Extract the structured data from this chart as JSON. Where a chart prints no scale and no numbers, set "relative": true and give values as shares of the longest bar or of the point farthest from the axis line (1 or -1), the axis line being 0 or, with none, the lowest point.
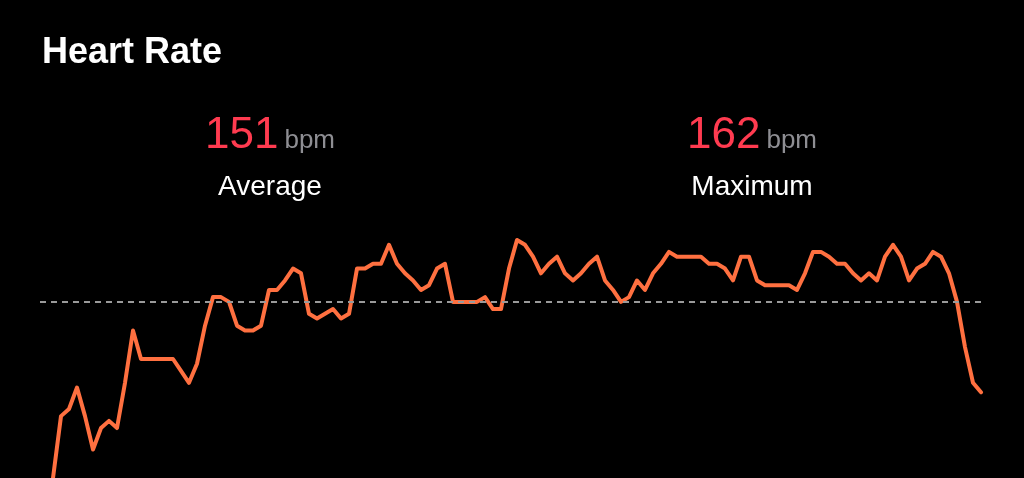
{
  "chart_data": {
    "type": "line",
    "title": "Heart Rate",
    "relative": true,
    "categories": [
      null,
      null,
      null,
      null,
      null,
      null,
      null,
      null,
      null,
      null,
      null,
      null,
      null,
      null,
      null,
      null,
      null,
      null,
      null,
      null,
      null,
      null,
      null,
      null,
      null,
      null,
      null,
      null,
      null,
      null,
      null,
      null,
      null,
      null,
      null,
      null,
      null,
      null,
      null,
      null,
      null,
      null,
      null,
      null,
      null,
      null,
      null,
      null,
      null,
      null,
      null,
      null,
      null,
      null,
      null,
      null,
      null,
      null,
      null,
      null,
      null,
      null,
      null,
      null,
      null,
      null,
      null,
      null,
      null,
      null,
      null,
      null,
      null,
      null,
      null,
      null,
      null,
      null,
      null,
      null,
      null,
      null,
      null,
      null,
      null,
      null,
      null,
      null,
      null,
      null,
      null,
      null,
      null,
      null,
      null,
      null,
      null,
      null,
      null,
      null,
      null,
      null,
      null,
      null,
      null,
      null,
      null,
      null,
      null,
      null,
      null,
      null,
      null,
      null,
      null,
      null,
      null
    ],
    "series": [
      {
        "color": "#ff7040",
        "values": [
          0,
          0.26,
          0.29,
          0.38,
          0.26,
          0.12,
          0.21,
          0.24,
          0.21,
          0.4,
          0.62,
          0.5,
          0.5,
          0.5,
          0.5,
          0.5,
          0.45,
          0.4,
          0.48,
          0.64,
          0.76,
          0.76,
          0.74,
          0.64,
          0.62,
          0.62,
          0.64,
          0.79,
          0.79,
          0.83,
          0.88,
          0.86,
          0.69,
          0.67,
          0.69,
          0.71,
          0.67,
          0.69,
          0.88,
          0.88,
          0.9,
          0.9,
          0.98,
          0.9,
          0.86,
          0.83,
          0.79,
          0.81,
          0.88,
          0.9,
          0.74,
          0.74,
          0.74,
          0.74,
          0.76,
          0.71,
          0.71,
          0.88,
          1,
          0.98,
          0.93,
          0.86,
          0.9,
          0.93,
          0.86,
          0.83,
          0.86,
          0.9,
          0.93,
          0.83,
          0.79,
          0.74,
          0.76,
          0.83,
          0.79,
          0.86,
          0.9,
          0.95,
          0.93,
          0.93,
          0.93,
          0.93,
          0.9,
          0.9,
          0.88,
          0.83,
          0.93,
          0.93,
          0.83,
          0.81,
          0.81,
          0.81,
          0.81,
          0.79,
          0.86,
          0.95,
          0.95,
          0.93,
          0.9,
          0.9,
          0.86,
          0.83,
          0.86,
          0.83,
          0.93,
          0.98,
          0.93,
          0.83,
          0.88,
          0.9,
          0.95,
          0.93,
          0.86,
          0.74,
          0.55,
          0.4,
          0.36
        ]
      }
    ],
    "ref_lines": [
      {
        "axis": "y",
        "value": 0.74,
        "color": "#9a9a9a",
        "line_style": "dashed"
      }
    ],
    "annotations": [
      "151",
      "bpm",
      "Average",
      "162",
      "bpm",
      "Maximum"
    ],
    "legend": false,
    "marker": "none",
    "line_style": "solid"
  }
}
